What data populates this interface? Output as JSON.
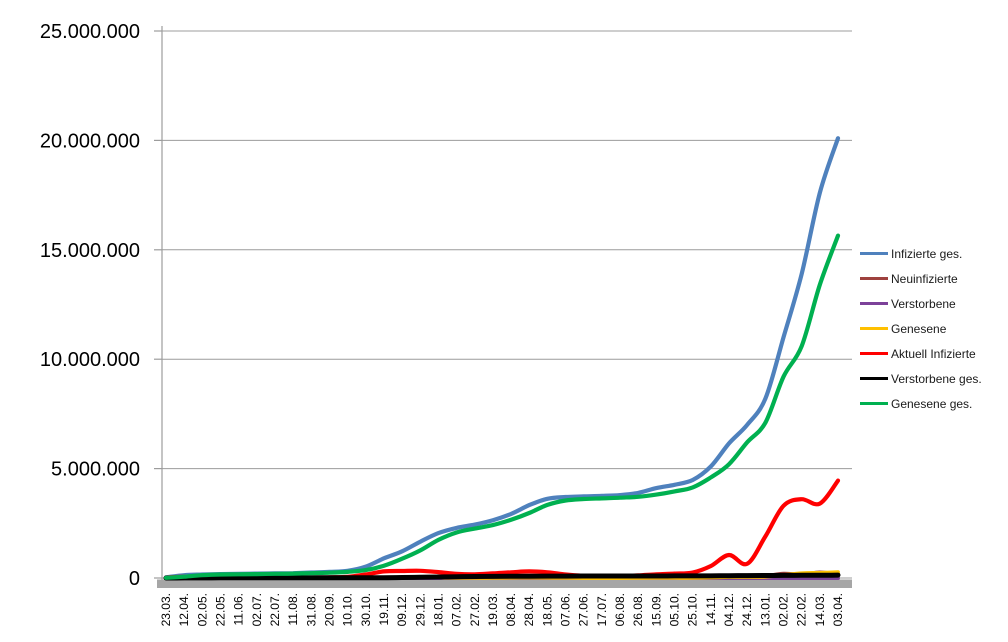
{
  "chart_data": {
    "type": "line",
    "title": "",
    "xlabel": "",
    "ylabel": "",
    "grid": true,
    "legend_position": "right",
    "y_axis": {
      "unit_note": "values in millions of persons",
      "min": 0,
      "max": 25,
      "ticks": [
        {
          "value": 0,
          "label": "0"
        },
        {
          "value": 5,
          "label": "5.000.000"
        },
        {
          "value": 10,
          "label": "10.000.000"
        },
        {
          "value": 15,
          "label": "15.000.000"
        },
        {
          "value": 20,
          "label": "20.000.000"
        },
        {
          "value": 25,
          "label": "25.000.000"
        }
      ]
    },
    "categories": [
      "23.03.",
      "12.04.",
      "02.05.",
      "22.05.",
      "11.06.",
      "02.07.",
      "22.07.",
      "11.08.",
      "31.08.",
      "20.09.",
      "10.10.",
      "30.10.",
      "19.11.",
      "09.12.",
      "29.12.",
      "18.01.",
      "07.02.",
      "27.02.",
      "19.03.",
      "08.04.",
      "28.04.",
      "18.05.",
      "07.06.",
      "27.06.",
      "17.07.",
      "06.08.",
      "26.08.",
      "15.09.",
      "05.10.",
      "25.10.",
      "14.11.",
      "04.12.",
      "24.12.",
      "13.01.",
      "02.02.",
      "22.02.",
      "14.03.",
      "03.04."
    ],
    "series": [
      {
        "name": "Infizierte ges.",
        "color": "#4F81BD",
        "width": 4.2,
        "values_millions": [
          0.03,
          0.13,
          0.16,
          0.18,
          0.19,
          0.2,
          0.21,
          0.22,
          0.25,
          0.28,
          0.33,
          0.52,
          0.9,
          1.22,
          1.66,
          2.05,
          2.29,
          2.44,
          2.64,
          2.93,
          3.33,
          3.62,
          3.7,
          3.73,
          3.75,
          3.79,
          3.89,
          4.11,
          4.26,
          4.48,
          5.1,
          6.15,
          7.0,
          8.2,
          11.0,
          13.9,
          17.6,
          20.1
        ]
      },
      {
        "name": "Neuinfizierte",
        "color": "#9E413E",
        "width": 4,
        "values_millions": [
          0.004,
          0.003,
          0.001,
          0.001,
          0.0,
          0.0,
          0.0,
          0.001,
          0.001,
          0.002,
          0.005,
          0.015,
          0.023,
          0.026,
          0.025,
          0.014,
          0.008,
          0.008,
          0.016,
          0.024,
          0.018,
          0.008,
          0.002,
          0.001,
          0.001,
          0.003,
          0.008,
          0.011,
          0.007,
          0.015,
          0.04,
          0.065,
          0.035,
          0.09,
          0.19,
          0.16,
          0.25,
          0.18
        ]
      },
      {
        "name": "Verstorbene",
        "color": "#7C4199",
        "width": 4,
        "values_millions": [
          0.0,
          0.0,
          0.0,
          0.0,
          0.0,
          0.0,
          0.0,
          0.0,
          0.0,
          0.0,
          0.0,
          0.0,
          0.001,
          0.001,
          0.001,
          0.001,
          0.001,
          0.0,
          0.0,
          0.0,
          0.0,
          0.0,
          0.0,
          0.0,
          0.0,
          0.0,
          0.0,
          0.0,
          0.0,
          0.0,
          0.0,
          0.001,
          0.001,
          0.001,
          0.001,
          0.001,
          0.001,
          0.001
        ]
      },
      {
        "name": "Genesene",
        "color": "#FFC000",
        "width": 4,
        "values_millions": [
          0.002,
          0.004,
          0.003,
          0.001,
          0.001,
          0.0,
          0.0,
          0.001,
          0.001,
          0.001,
          0.003,
          0.007,
          0.017,
          0.023,
          0.026,
          0.021,
          0.013,
          0.007,
          0.011,
          0.017,
          0.021,
          0.016,
          0.007,
          0.002,
          0.001,
          0.002,
          0.006,
          0.01,
          0.008,
          0.009,
          0.028,
          0.05,
          0.048,
          0.065,
          0.13,
          0.21,
          0.23,
          0.26
        ]
      },
      {
        "name": "Aktuell Infizierte",
        "color": "#FF0000",
        "width": 4.2,
        "values_millions": [
          0.02,
          0.06,
          0.03,
          0.02,
          0.01,
          0.01,
          0.01,
          0.015,
          0.02,
          0.03,
          0.05,
          0.16,
          0.3,
          0.32,
          0.33,
          0.27,
          0.19,
          0.17,
          0.21,
          0.26,
          0.3,
          0.26,
          0.16,
          0.1,
          0.08,
          0.1,
          0.12,
          0.17,
          0.2,
          0.25,
          0.55,
          1.05,
          0.65,
          1.9,
          3.3,
          3.6,
          3.4,
          4.45
        ]
      },
      {
        "name": "Verstorbene ges.",
        "color": "#000000",
        "width": 5,
        "values_millions": [
          0.0,
          0.003,
          0.006,
          0.008,
          0.009,
          0.009,
          0.009,
          0.009,
          0.009,
          0.009,
          0.01,
          0.01,
          0.014,
          0.021,
          0.032,
          0.047,
          0.061,
          0.069,
          0.075,
          0.078,
          0.082,
          0.086,
          0.089,
          0.09,
          0.091,
          0.092,
          0.092,
          0.093,
          0.094,
          0.095,
          0.098,
          0.103,
          0.11,
          0.115,
          0.118,
          0.122,
          0.126,
          0.131
        ]
      },
      {
        "name": "Genesene ges.",
        "color": "#00B050",
        "width": 4.2,
        "values_millions": [
          0.01,
          0.06,
          0.13,
          0.16,
          0.17,
          0.18,
          0.19,
          0.2,
          0.22,
          0.24,
          0.28,
          0.36,
          0.56,
          0.88,
          1.26,
          1.74,
          2.08,
          2.26,
          2.42,
          2.66,
          2.97,
          3.34,
          3.54,
          3.61,
          3.64,
          3.67,
          3.71,
          3.81,
          3.96,
          4.14,
          4.6,
          5.2,
          6.2,
          7.1,
          9.2,
          10.6,
          13.4,
          15.65
        ]
      }
    ]
  },
  "colors": {
    "background": "#FFFFFF",
    "gridline": "#9C9C9C",
    "axis": "#9C9C9C",
    "baseline_bar": "#A6A6A6",
    "tick_label": "#000000",
    "legend_text": "#1A1A1A"
  }
}
